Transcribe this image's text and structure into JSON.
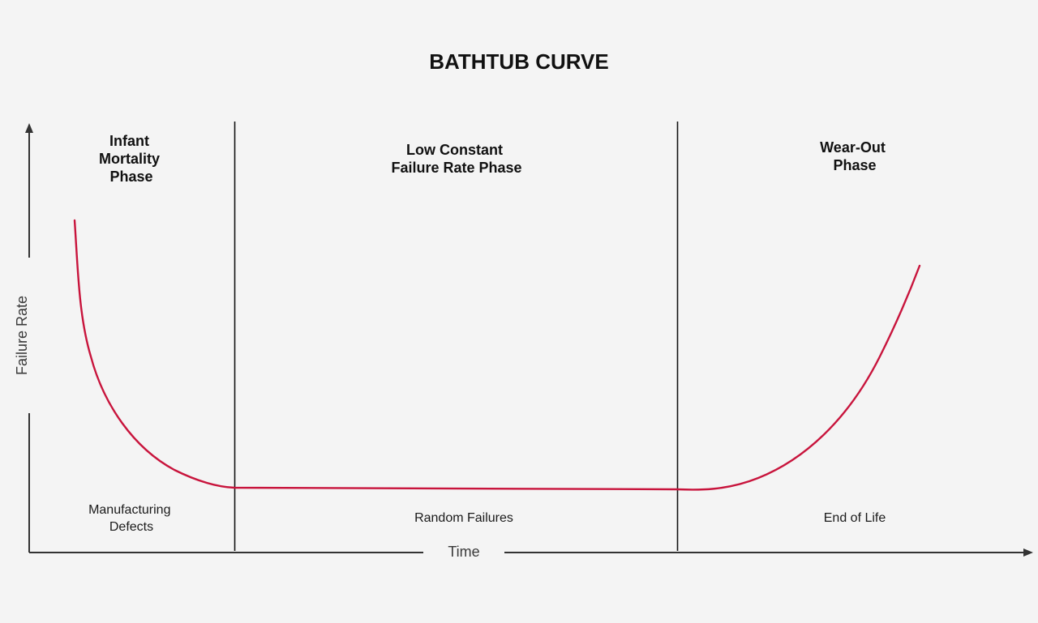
{
  "title": "BATHTUB CURVE",
  "axes": {
    "x_label": "Time",
    "y_label": "Failure Rate"
  },
  "phases": [
    {
      "name_lines": [
        "Infant",
        "Mortality",
        "Phase"
      ],
      "cause_lines": [
        "Manufacturing",
        "Defects"
      ]
    },
    {
      "name_lines": [
        "Low Constant",
        "Failure Rate Phase"
      ],
      "cause_lines": [
        "Random Failures"
      ]
    },
    {
      "name_lines": [
        "Wear-Out",
        "Phase"
      ],
      "cause_lines": [
        "End of Life"
      ]
    }
  ],
  "colors": {
    "background": "#f4f4f4",
    "curve": "#c8143c",
    "axis": "#333333",
    "divider": "#111111",
    "text": "#111111"
  }
}
